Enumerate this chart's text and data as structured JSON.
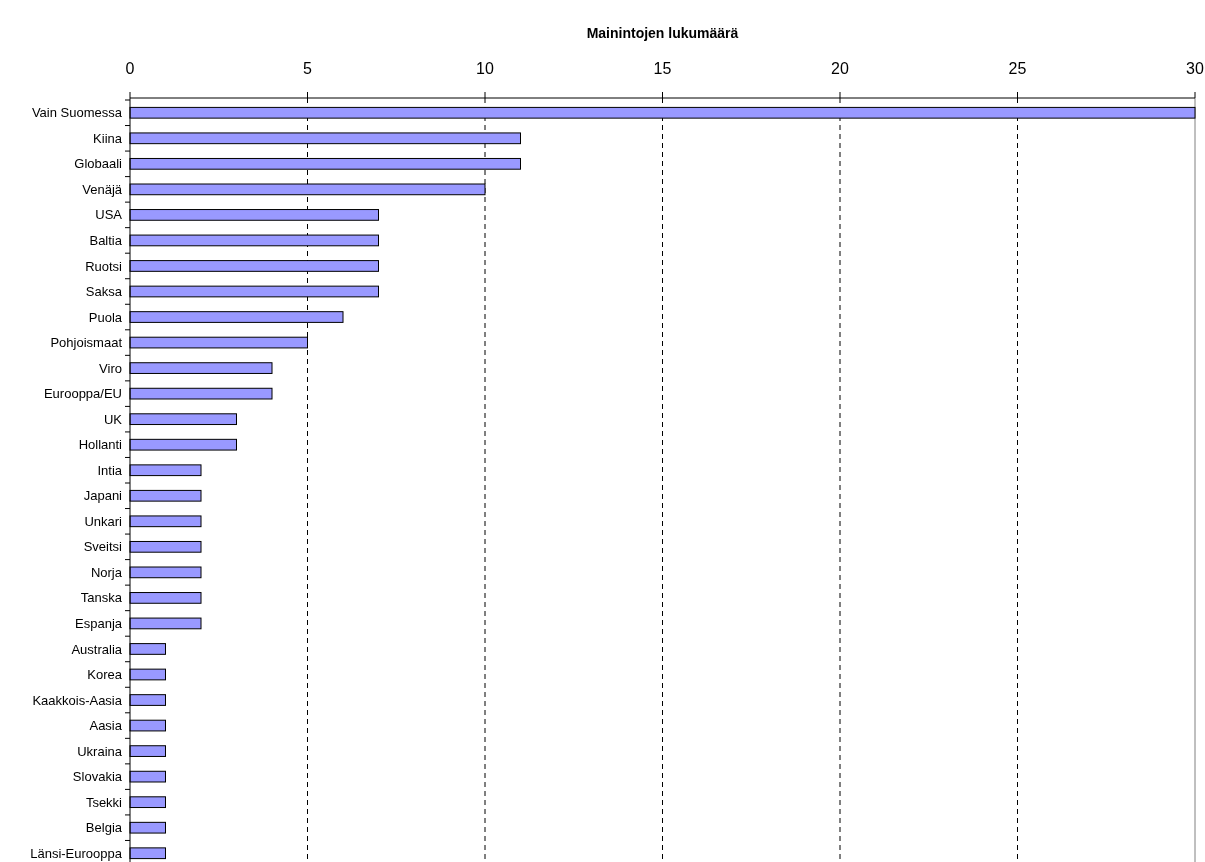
{
  "chart_data": {
    "type": "bar",
    "orientation": "horizontal",
    "xlabel": "Mainintojen lukumäärä",
    "categories": [
      "Vain Suomessa",
      "Kiina",
      "Globaali",
      "Venäjä",
      "USA",
      "Baltia",
      "Ruotsi",
      "Saksa",
      "Puola",
      "Pohjoismaat",
      "Viro",
      "Eurooppa/EU",
      "UK",
      "Hollanti",
      "Intia",
      "Japani",
      "Unkari",
      "Sveitsi",
      "Norja",
      "Tanska",
      "Espanja",
      "Australia",
      "Korea",
      "Kaakkois-Aasia",
      "Aasia",
      "Ukraina",
      "Slovakia",
      "Tsekki",
      "Belgia",
      "Länsi-Eurooppa"
    ],
    "values": [
      30,
      11,
      11,
      10,
      7,
      7,
      7,
      7,
      6,
      5,
      4,
      4,
      3,
      3,
      2,
      2,
      2,
      2,
      2,
      2,
      2,
      1,
      1,
      1,
      1,
      1,
      1,
      1,
      1,
      1
    ],
    "color": "#9999ff",
    "xlim": [
      0,
      30
    ],
    "xticks": [
      0,
      5,
      10,
      15,
      20,
      25,
      30
    ],
    "grid": "x"
  }
}
